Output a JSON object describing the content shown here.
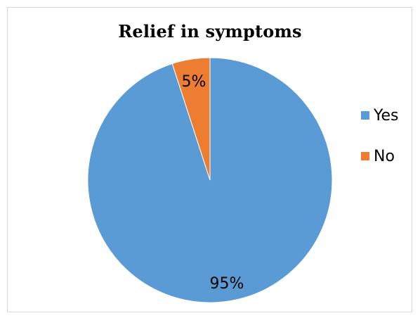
{
  "chart_data": {
    "type": "pie",
    "title": "Relief in symptoms",
    "categories": [
      "Yes",
      "No"
    ],
    "values": [
      95,
      5
    ],
    "labels": [
      "95%",
      "5%"
    ],
    "colors": [
      "#5B9BD5",
      "#ED7D31"
    ],
    "legend_position": "right"
  },
  "legend": {
    "items": [
      {
        "label": "Yes",
        "color": "#5B9BD5"
      },
      {
        "label": "No",
        "color": "#ED7D31"
      }
    ]
  }
}
